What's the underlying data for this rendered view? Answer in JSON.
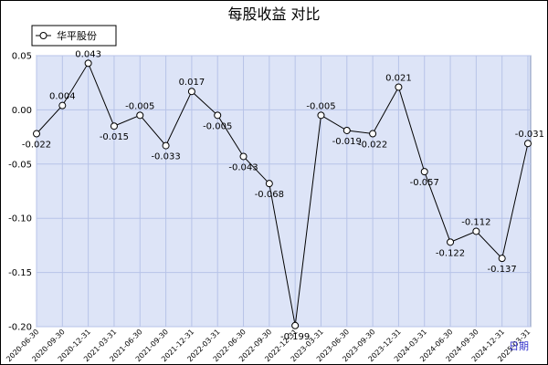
{
  "chart_data": {
    "type": "line",
    "title": "每股收益  对比",
    "corner_label": "日期",
    "legend": {
      "placement": "top-left",
      "entries": [
        "华平股份"
      ]
    },
    "ylim": [
      -0.2,
      0.05
    ],
    "yticks": [
      "0.05",
      "0.00",
      "-0.05",
      "-0.10",
      "-0.15",
      "-0.20"
    ],
    "grid": true,
    "colors": {
      "plot_bg": "#dde4f7",
      "grid": "#b7c3e8",
      "line": "#000000"
    },
    "x": [
      "2020-06-30",
      "2020-09-30",
      "2020-12-31",
      "2021-03-31",
      "2021-06-30",
      "2021-09-30",
      "2021-12-31",
      "2022-03-31",
      "2022-06-30",
      "2022-09-30",
      "2022-12-31",
      "2023-03-31",
      "2023-06-30",
      "2023-09-30",
      "2023-12-31",
      "2024-03-31",
      "2024-06-30",
      "2024-09-30",
      "2024-12-31",
      "2025-03-31"
    ],
    "series": [
      {
        "name": "华平股份",
        "values": [
          -0.022,
          0.004,
          0.043,
          -0.015,
          -0.005,
          -0.033,
          0.017,
          -0.005,
          -0.043,
          -0.068,
          -0.199,
          -0.005,
          -0.019,
          -0.022,
          0.021,
          -0.057,
          -0.122,
          -0.112,
          -0.137,
          -0.031
        ],
        "labels": [
          "-0.022",
          "0.004",
          "0.043",
          "-0.015",
          "-0.005",
          "-0.033",
          "0.017",
          "-0.005",
          "-0.043",
          "-0.068",
          "-0.199",
          "-0.005",
          "-0.019",
          "-0.022",
          "0.021",
          "-0.057",
          "-0.122",
          "-0.112",
          "-0.137",
          "-0.031"
        ]
      }
    ]
  }
}
